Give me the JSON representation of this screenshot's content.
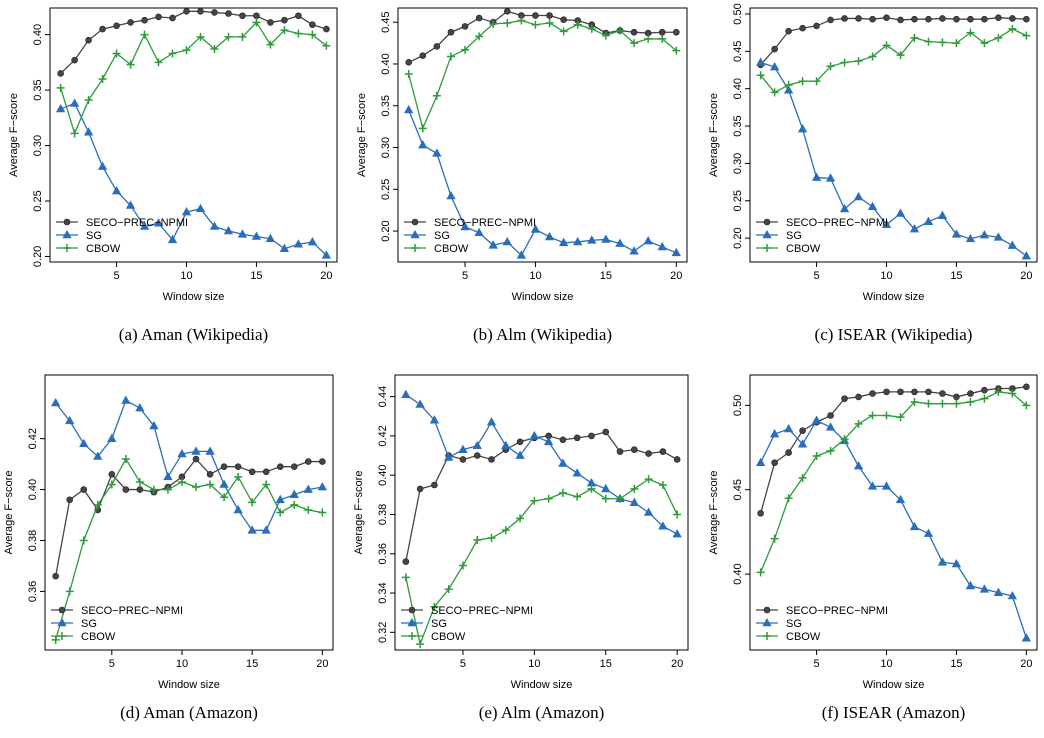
{
  "chart_data": [
    {
      "type": "line",
      "caption": "(a) Aman (Wikipedia)",
      "xlabel": "Window size",
      "ylabel": "Average F−score",
      "legend": "lower left",
      "x": [
        1,
        2,
        3,
        4,
        5,
        6,
        7,
        8,
        9,
        10,
        11,
        12,
        13,
        14,
        15,
        16,
        17,
        18,
        19,
        20
      ],
      "xlim": [
        0.24,
        20.76
      ],
      "xticks": [
        5,
        10,
        15,
        20
      ],
      "ylim": [
        0.195,
        0.424
      ],
      "yticks": [
        {
          "value": 0.2,
          "label": "0.20"
        },
        0.25,
        {
          "value": 0.3,
          "label": "0.30"
        },
        0.35,
        {
          "value": 0.4,
          "label": "0.40"
        }
      ],
      "series": [
        {
          "name": "SECO−PREC−NPMI",
          "color": "#454545",
          "marker": "circle",
          "values": [
            0.365,
            0.377,
            0.395,
            0.405,
            0.408,
            0.411,
            0.413,
            0.416,
            0.415,
            0.421,
            0.421,
            0.42,
            0.419,
            0.417,
            0.417,
            0.411,
            0.413,
            0.417,
            0.409,
            0.405
          ]
        },
        {
          "name": "SG",
          "color": "#2a6ebb",
          "marker": "triangle",
          "values": [
            0.333,
            0.338,
            0.312,
            0.281,
            0.259,
            0.246,
            0.227,
            0.23,
            0.215,
            0.24,
            0.243,
            0.227,
            0.223,
            0.22,
            0.218,
            0.216,
            0.207,
            0.211,
            0.213,
            0.201
          ]
        },
        {
          "name": "CBOW",
          "color": "#2e9a3a",
          "marker": "plus",
          "values": [
            0.352,
            0.311,
            0.341,
            0.36,
            0.383,
            0.373,
            0.4,
            0.375,
            0.383,
            0.386,
            0.398,
            0.387,
            0.398,
            0.398,
            0.411,
            0.391,
            0.404,
            0.401,
            0.4,
            0.39
          ]
        }
      ]
    },
    {
      "type": "line",
      "caption": "(b) Alm (Wikipedia)",
      "xlabel": "Window size",
      "ylabel": "Average F−score",
      "legend": "lower left",
      "x": [
        1,
        2,
        3,
        4,
        5,
        6,
        7,
        8,
        9,
        10,
        11,
        12,
        13,
        14,
        15,
        16,
        17,
        18,
        19,
        20
      ],
      "xlim": [
        0.24,
        20.76
      ],
      "xticks": [
        5,
        10,
        15,
        20
      ],
      "ylim": [
        0.163,
        0.467
      ],
      "yticks": [
        {
          "value": 0.2,
          "label": "0.20"
        },
        0.25,
        {
          "value": 0.3,
          "label": "0.30"
        },
        0.35,
        {
          "value": 0.4,
          "label": "0.40"
        },
        0.45
      ],
      "series": [
        {
          "name": "SECO−PREC−NPMI",
          "color": "#454545",
          "marker": "circle",
          "values": [
            0.402,
            0.41,
            0.421,
            0.438,
            0.445,
            0.455,
            0.45,
            0.463,
            0.458,
            0.458,
            0.458,
            0.453,
            0.452,
            0.447,
            0.437,
            0.44,
            0.438,
            0.437,
            0.438,
            0.438
          ]
        },
        {
          "name": "SG",
          "color": "#2a6ebb",
          "marker": "triangle",
          "values": [
            0.345,
            0.303,
            0.293,
            0.242,
            0.205,
            0.198,
            0.183,
            0.187,
            0.171,
            0.202,
            0.193,
            0.186,
            0.187,
            0.189,
            0.19,
            0.185,
            0.176,
            0.188,
            0.181,
            0.174
          ]
        },
        {
          "name": "CBOW",
          "color": "#2e9a3a",
          "marker": "plus",
          "values": [
            0.388,
            0.323,
            0.362,
            0.409,
            0.417,
            0.433,
            0.448,
            0.449,
            0.452,
            0.447,
            0.449,
            0.439,
            0.447,
            0.442,
            0.434,
            0.44,
            0.425,
            0.43,
            0.43,
            0.416
          ]
        }
      ]
    },
    {
      "type": "line",
      "caption": "(c) ISEAR (Wikipedia)",
      "xlabel": "Window size",
      "ylabel": "Average F−score",
      "legend": "lower left",
      "x": [
        1,
        2,
        3,
        4,
        5,
        6,
        7,
        8,
        9,
        10,
        11,
        12,
        13,
        14,
        15,
        16,
        17,
        18,
        19,
        20
      ],
      "xlim": [
        0.24,
        20.76
      ],
      "xticks": [
        5,
        10,
        15,
        20
      ],
      "ylim": [
        0.168,
        0.508
      ],
      "yticks": [
        {
          "value": 0.2,
          "label": "0.20"
        },
        0.25,
        {
          "value": 0.3,
          "label": "0.30"
        },
        0.35,
        {
          "value": 0.4,
          "label": "0.40"
        },
        0.45,
        {
          "value": 0.5,
          "label": "0.50"
        }
      ],
      "series": [
        {
          "name": "SECO−PREC−NPMI",
          "color": "#454545",
          "marker": "circle",
          "values": [
            0.432,
            0.453,
            0.477,
            0.481,
            0.484,
            0.492,
            0.494,
            0.494,
            0.493,
            0.495,
            0.492,
            0.493,
            0.493,
            0.494,
            0.493,
            0.493,
            0.493,
            0.495,
            0.494,
            0.493
          ]
        },
        {
          "name": "SG",
          "color": "#2a6ebb",
          "marker": "triangle",
          "values": [
            0.435,
            0.429,
            0.398,
            0.346,
            0.281,
            0.28,
            0.239,
            0.255,
            0.242,
            0.218,
            0.233,
            0.212,
            0.222,
            0.23,
            0.205,
            0.199,
            0.204,
            0.201,
            0.19,
            0.176
          ]
        },
        {
          "name": "CBOW",
          "color": "#2e9a3a",
          "marker": "plus",
          "values": [
            0.418,
            0.395,
            0.405,
            0.41,
            0.41,
            0.43,
            0.435,
            0.437,
            0.443,
            0.458,
            0.445,
            0.468,
            0.463,
            0.462,
            0.461,
            0.475,
            0.461,
            0.468,
            0.48,
            0.471
          ]
        }
      ]
    },
    {
      "type": "line",
      "caption": "(d) Aman (Amazon)",
      "xlabel": "Window size",
      "ylabel": "Average F−score",
      "legend": "lower left",
      "x": [
        1,
        2,
        3,
        4,
        5,
        6,
        7,
        8,
        9,
        10,
        11,
        12,
        13,
        14,
        15,
        16,
        17,
        18,
        19,
        20
      ],
      "xlim": [
        0.24,
        20.76
      ],
      "xticks": [
        5,
        10,
        15,
        20
      ],
      "ylim": [
        0.337,
        0.445
      ],
      "yticks": [
        0.36,
        0.38,
        {
          "value": 0.4,
          "label": "0.40"
        },
        0.42
      ],
      "series": [
        {
          "name": "SECO−PREC−NPMI",
          "color": "#454545",
          "marker": "circle",
          "values": [
            0.366,
            0.396,
            0.4,
            0.392,
            0.406,
            0.4,
            0.4,
            0.399,
            0.401,
            0.405,
            0.412,
            0.406,
            0.409,
            0.409,
            0.407,
            0.407,
            0.409,
            0.409,
            0.411,
            0.411
          ]
        },
        {
          "name": "SG",
          "color": "#2a6ebb",
          "marker": "triangle",
          "values": [
            0.434,
            0.427,
            0.418,
            0.413,
            0.42,
            0.435,
            0.432,
            0.425,
            0.405,
            0.414,
            0.415,
            0.415,
            0.402,
            0.392,
            0.384,
            0.384,
            0.396,
            0.398,
            0.4,
            0.401
          ]
        },
        {
          "name": "CBOW",
          "color": "#2e9a3a",
          "marker": "plus",
          "values": [
            0.341,
            0.36,
            0.38,
            0.394,
            0.402,
            0.412,
            0.403,
            0.4,
            0.4,
            0.403,
            0.401,
            0.402,
            0.397,
            0.405,
            0.395,
            0.402,
            0.391,
            0.394,
            0.392,
            0.391
          ]
        }
      ]
    },
    {
      "type": "line",
      "caption": "(e) Alm (Amazon)",
      "xlabel": "Window size",
      "ylabel": "Average F−score",
      "legend": "lower left",
      "x": [
        1,
        2,
        3,
        4,
        5,
        6,
        7,
        8,
        9,
        10,
        11,
        12,
        13,
        14,
        15,
        16,
        17,
        18,
        19,
        20
      ],
      "xlim": [
        0.24,
        20.76
      ],
      "xticks": [
        5,
        10,
        15,
        20
      ],
      "ylim": [
        0.311,
        0.451
      ],
      "yticks": [
        0.32,
        0.34,
        0.36,
        0.38,
        {
          "value": 0.4,
          "label": "0.40"
        },
        0.42,
        0.44
      ],
      "series": [
        {
          "name": "SECO−PREC−NPMI",
          "color": "#454545",
          "marker": "circle",
          "values": [
            0.356,
            0.393,
            0.395,
            0.41,
            0.408,
            0.41,
            0.408,
            0.413,
            0.417,
            0.419,
            0.42,
            0.418,
            0.419,
            0.42,
            0.422,
            0.412,
            0.413,
            0.411,
            0.412,
            0.408
          ]
        },
        {
          "name": "SG",
          "color": "#2a6ebb",
          "marker": "triangle",
          "values": [
            0.441,
            0.436,
            0.428,
            0.409,
            0.413,
            0.415,
            0.427,
            0.415,
            0.41,
            0.42,
            0.417,
            0.406,
            0.401,
            0.396,
            0.393,
            0.388,
            0.386,
            0.381,
            0.374,
            0.37
          ]
        },
        {
          "name": "CBOW",
          "color": "#2e9a3a",
          "marker": "plus",
          "values": [
            0.348,
            0.314,
            0.333,
            0.342,
            0.354,
            0.367,
            0.368,
            0.372,
            0.378,
            0.387,
            0.388,
            0.391,
            0.389,
            0.393,
            0.388,
            0.388,
            0.393,
            0.398,
            0.395,
            0.38
          ]
        }
      ]
    },
    {
      "type": "line",
      "caption": "(f) ISEAR (Amazon)",
      "xlabel": "Window size",
      "ylabel": "Average F−score",
      "legend": "lower left",
      "x": [
        1,
        2,
        3,
        4,
        5,
        6,
        7,
        8,
        9,
        10,
        11,
        12,
        13,
        14,
        15,
        16,
        17,
        18,
        19,
        20
      ],
      "xlim": [
        0.24,
        20.76
      ],
      "xticks": [
        5,
        10,
        15,
        20
      ],
      "ylim": [
        0.355,
        0.518
      ],
      "yticks": [
        {
          "value": 0.4,
          "label": "0.40"
        },
        0.45,
        {
          "value": 0.5,
          "label": "0.50"
        }
      ],
      "series": [
        {
          "name": "SECO−PREC−NPMI",
          "color": "#454545",
          "marker": "circle",
          "values": [
            0.436,
            0.466,
            0.472,
            0.485,
            0.49,
            0.494,
            0.504,
            0.505,
            0.507,
            0.508,
            0.508,
            0.508,
            0.508,
            0.507,
            0.505,
            0.507,
            0.509,
            0.51,
            0.51,
            0.511
          ]
        },
        {
          "name": "SG",
          "color": "#2a6ebb",
          "marker": "triangle",
          "values": [
            0.466,
            0.483,
            0.486,
            0.477,
            0.491,
            0.487,
            0.479,
            0.464,
            0.452,
            0.452,
            0.444,
            0.428,
            0.424,
            0.407,
            0.406,
            0.393,
            0.391,
            0.389,
            0.387,
            0.362
          ]
        },
        {
          "name": "CBOW",
          "color": "#2e9a3a",
          "marker": "plus",
          "values": [
            0.401,
            0.421,
            0.445,
            0.457,
            0.47,
            0.473,
            0.48,
            0.489,
            0.494,
            0.494,
            0.493,
            0.502,
            0.501,
            0.501,
            0.501,
            0.502,
            0.504,
            0.508,
            0.507,
            0.5
          ]
        }
      ]
    }
  ]
}
